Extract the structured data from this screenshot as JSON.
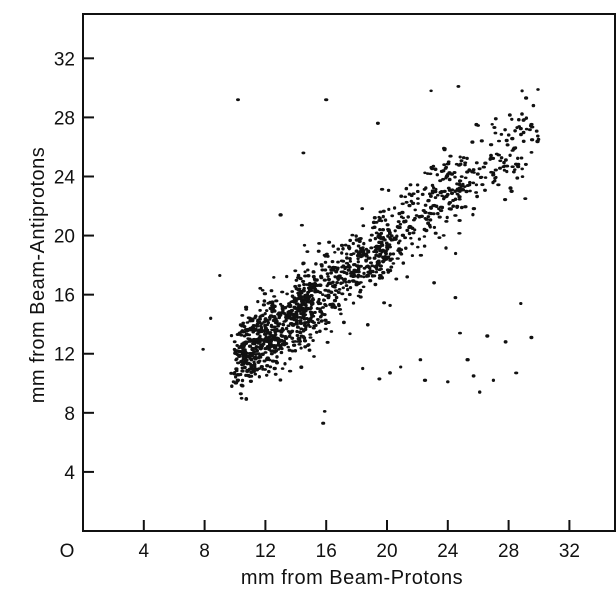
{
  "chart_data": {
    "type": "scatter",
    "title": "",
    "xlabel": "mm from Beam-Protons",
    "ylabel": "mm from Beam-Antiprotons",
    "xlim": [
      0,
      35
    ],
    "ylim": [
      0,
      35
    ],
    "x_ticks": [
      0,
      4,
      8,
      12,
      16,
      20,
      24,
      28,
      32
    ],
    "y_ticks": [
      4,
      8,
      12,
      16,
      20,
      24,
      28,
      32
    ],
    "x_tick_labels": [
      "O",
      "4",
      "8",
      "12",
      "16",
      "20",
      "24",
      "28",
      "32"
    ],
    "y_tick_labels": [
      "4",
      "8",
      "12",
      "16",
      "20",
      "24",
      "28",
      "32"
    ],
    "grid": false,
    "legend": "none",
    "marker_color": "#111111",
    "main_band": {
      "points": 1400,
      "x_range": [
        9.5,
        30
      ],
      "trend_y_at_x10": 11.5,
      "trend_y_at_x30": 27.5,
      "spread": 1.3
    },
    "outliers": [
      {
        "x": 10.2,
        "y": 29.2
      },
      {
        "x": 16.0,
        "y": 29.2
      },
      {
        "x": 14.5,
        "y": 25.6
      },
      {
        "x": 19.4,
        "y": 27.6
      },
      {
        "x": 13.0,
        "y": 21.4
      },
      {
        "x": 14.4,
        "y": 20.7
      },
      {
        "x": 8.4,
        "y": 14.4
      },
      {
        "x": 9.0,
        "y": 17.3
      },
      {
        "x": 7.9,
        "y": 12.3
      },
      {
        "x": 15.8,
        "y": 7.3
      },
      {
        "x": 15.9,
        "y": 8.1
      },
      {
        "x": 18.4,
        "y": 11.0
      },
      {
        "x": 19.5,
        "y": 10.3
      },
      {
        "x": 20.2,
        "y": 10.7
      },
      {
        "x": 20.9,
        "y": 11.1
      },
      {
        "x": 22.2,
        "y": 11.6
      },
      {
        "x": 22.5,
        "y": 10.2
      },
      {
        "x": 24.0,
        "y": 10.1
      },
      {
        "x": 24.8,
        "y": 13.4
      },
      {
        "x": 25.3,
        "y": 11.6
      },
      {
        "x": 25.7,
        "y": 10.5
      },
      {
        "x": 26.1,
        "y": 9.4
      },
      {
        "x": 26.6,
        "y": 13.2
      },
      {
        "x": 27.0,
        "y": 10.2
      },
      {
        "x": 27.8,
        "y": 12.8
      },
      {
        "x": 28.5,
        "y": 10.7
      },
      {
        "x": 29.5,
        "y": 13.1
      },
      {
        "x": 28.8,
        "y": 15.4
      },
      {
        "x": 24.5,
        "y": 15.8
      },
      {
        "x": 23.1,
        "y": 16.8
      },
      {
        "x": 29.1,
        "y": 22.5
      },
      {
        "x": 28.2,
        "y": 23.0
      },
      {
        "x": 22.9,
        "y": 29.8
      },
      {
        "x": 24.7,
        "y": 30.1
      }
    ]
  }
}
